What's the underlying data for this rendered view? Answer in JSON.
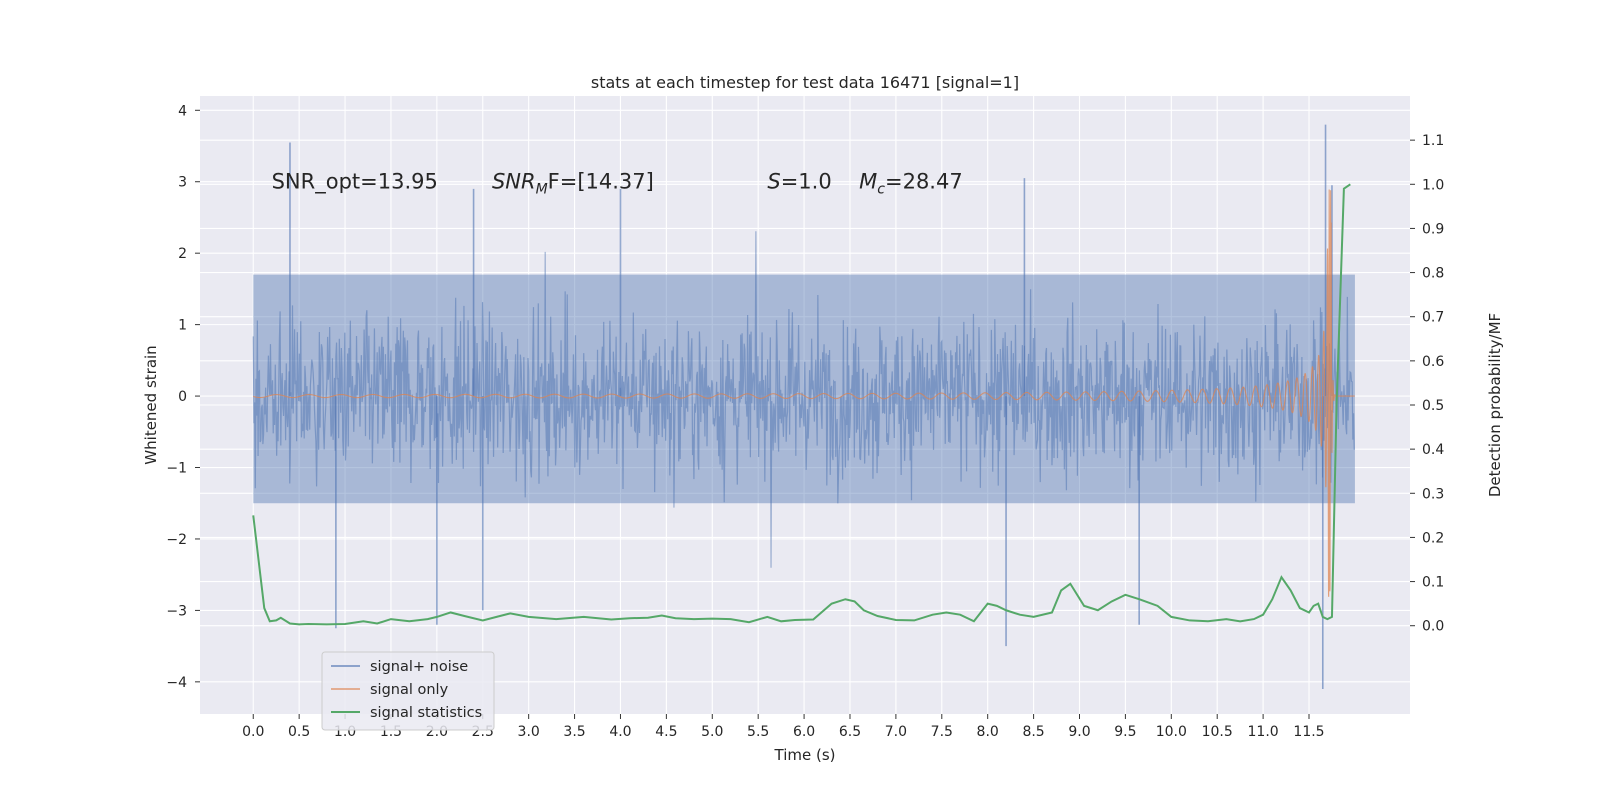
{
  "chart_data": {
    "type": "line",
    "title": "stats at each timestep for test data 16471 [signal=1]",
    "xlabel": "Time (s)",
    "ylabel": "Whitened strain",
    "y2label": "Detection probability/MF",
    "xlim": [
      -0.58,
      12.6
    ],
    "ylim": [
      -4.45,
      4.2
    ],
    "y2lim": [
      -0.2,
      1.2
    ],
    "x_ticks": [
      0.0,
      0.5,
      1.0,
      1.5,
      2.0,
      2.5,
      3.0,
      3.5,
      4.0,
      4.5,
      5.0,
      5.5,
      6.0,
      6.5,
      7.0,
      7.5,
      8.0,
      8.5,
      9.0,
      9.5,
      10.0,
      10.5,
      11.0,
      11.5
    ],
    "x_tick_labels": [
      "0.0",
      "0.5",
      "1.0",
      "1.5",
      "2.0",
      "2.5",
      "3.0",
      "3.5",
      "4.0",
      "4.5",
      "5.0",
      "5.5",
      "6.0",
      "6.5",
      "7.0",
      "7.5",
      "8.0",
      "8.5",
      "9.0",
      "9.5",
      "10.0",
      "10.5",
      "11.0",
      "11.5"
    ],
    "y_ticks": [
      -4,
      -3,
      -2,
      -1,
      0,
      1,
      2,
      3,
      4
    ],
    "y_tick_labels": [
      "−4",
      "−3",
      "−2",
      "−1",
      "0",
      "1",
      "2",
      "3",
      "4"
    ],
    "y2_ticks": [
      0.0,
      0.1,
      0.2,
      0.3,
      0.4,
      0.5,
      0.6,
      0.7,
      0.8,
      0.9,
      1.0,
      1.1
    ],
    "y2_tick_labels": [
      "0.0",
      "0.1",
      "0.2",
      "0.3",
      "0.4",
      "0.5",
      "0.6",
      "0.7",
      "0.8",
      "0.9",
      "1.0",
      "1.1"
    ],
    "grid": true,
    "legend_position": "lower-left",
    "annotations": [
      {
        "parts": [
          {
            "t": "SNR_opt=13.95",
            "i": false
          }
        ],
        "x": 0.2,
        "y": 3.0
      },
      {
        "parts": [
          {
            "t": "SNR",
            "i": true
          },
          {
            "t": "M",
            "i": true,
            "sub": true
          },
          {
            "t": "F=[14.37]",
            "i": false
          }
        ],
        "x": 2.6,
        "y": 3.0
      },
      {
        "parts": [
          {
            "t": "S",
            "i": true
          },
          {
            "t": "=1.0",
            "i": false
          }
        ],
        "x": 5.6,
        "y": 3.0
      },
      {
        "parts": [
          {
            "t": "M",
            "i": true
          },
          {
            "t": "c",
            "i": true,
            "sub": true
          },
          {
            "t": "=28.47",
            "i": false
          }
        ],
        "x": 6.6,
        "y": 3.0
      }
    ],
    "series": [
      {
        "name": "signal+ noise",
        "axis": "left",
        "color": "#4c72b0",
        "description_kind": "noise_band",
        "x_range": [
          0.0,
          12.0
        ],
        "typical_upper": 1.7,
        "typical_lower": -1.5,
        "peaks": [
          {
            "x": 0.4,
            "y": 3.55
          },
          {
            "x": 2.4,
            "y": 2.9
          },
          {
            "x": 4.0,
            "y": 2.9
          },
          {
            "x": 8.4,
            "y": 3.05
          },
          {
            "x": 11.68,
            "y": 3.8
          },
          {
            "x": 11.75,
            "y": 2.95
          },
          {
            "x": 0.9,
            "y": -3.25
          },
          {
            "x": 2.0,
            "y": -3.2
          },
          {
            "x": 2.5,
            "y": -3.0
          },
          {
            "x": 8.2,
            "y": -3.5
          },
          {
            "x": 9.65,
            "y": -3.2
          },
          {
            "x": 11.65,
            "y": -4.1
          }
        ]
      },
      {
        "name": "signal only",
        "axis": "left",
        "color": "#dd8452",
        "description_kind": "chirp",
        "x_range": [
          0.0,
          12.0
        ],
        "merger_time": 11.72,
        "peak_amplitude": 2.9
      },
      {
        "name": "signal statistics",
        "axis": "right",
        "color": "#55a868",
        "x": [
          0.0,
          0.12,
          0.18,
          0.25,
          0.3,
          0.4,
          0.5,
          0.6,
          0.8,
          1.0,
          1.2,
          1.35,
          1.5,
          1.7,
          1.9,
          2.0,
          2.15,
          2.3,
          2.5,
          2.65,
          2.8,
          3.0,
          3.3,
          3.6,
          3.9,
          4.1,
          4.3,
          4.45,
          4.6,
          4.8,
          5.0,
          5.2,
          5.4,
          5.6,
          5.75,
          5.9,
          6.1,
          6.3,
          6.45,
          6.55,
          6.65,
          6.8,
          7.0,
          7.2,
          7.4,
          7.55,
          7.7,
          7.85,
          8.0,
          8.1,
          8.2,
          8.35,
          8.5,
          8.7,
          8.8,
          8.9,
          9.05,
          9.2,
          9.35,
          9.5,
          9.65,
          9.85,
          10.0,
          10.2,
          10.4,
          10.6,
          10.75,
          10.9,
          11.0,
          11.1,
          11.2,
          11.3,
          11.4,
          11.5,
          11.55,
          11.6,
          11.65,
          11.7,
          11.75,
          11.8,
          11.88,
          11.95
        ],
        "values": [
          0.25,
          0.04,
          0.01,
          0.012,
          0.018,
          0.005,
          0.003,
          0.004,
          0.003,
          0.004,
          0.01,
          0.005,
          0.015,
          0.01,
          0.015,
          0.02,
          0.03,
          0.022,
          0.012,
          0.02,
          0.028,
          0.02,
          0.015,
          0.02,
          0.014,
          0.017,
          0.018,
          0.023,
          0.017,
          0.015,
          0.016,
          0.015,
          0.008,
          0.02,
          0.01,
          0.013,
          0.014,
          0.05,
          0.06,
          0.055,
          0.035,
          0.022,
          0.013,
          0.012,
          0.025,
          0.03,
          0.025,
          0.01,
          0.05,
          0.045,
          0.035,
          0.025,
          0.02,
          0.03,
          0.08,
          0.095,
          0.045,
          0.035,
          0.055,
          0.07,
          0.06,
          0.045,
          0.02,
          0.012,
          0.01,
          0.015,
          0.01,
          0.015,
          0.025,
          0.06,
          0.11,
          0.08,
          0.04,
          0.03,
          0.045,
          0.05,
          0.02,
          0.015,
          0.02,
          0.5,
          0.99,
          1.0
        ]
      }
    ]
  }
}
